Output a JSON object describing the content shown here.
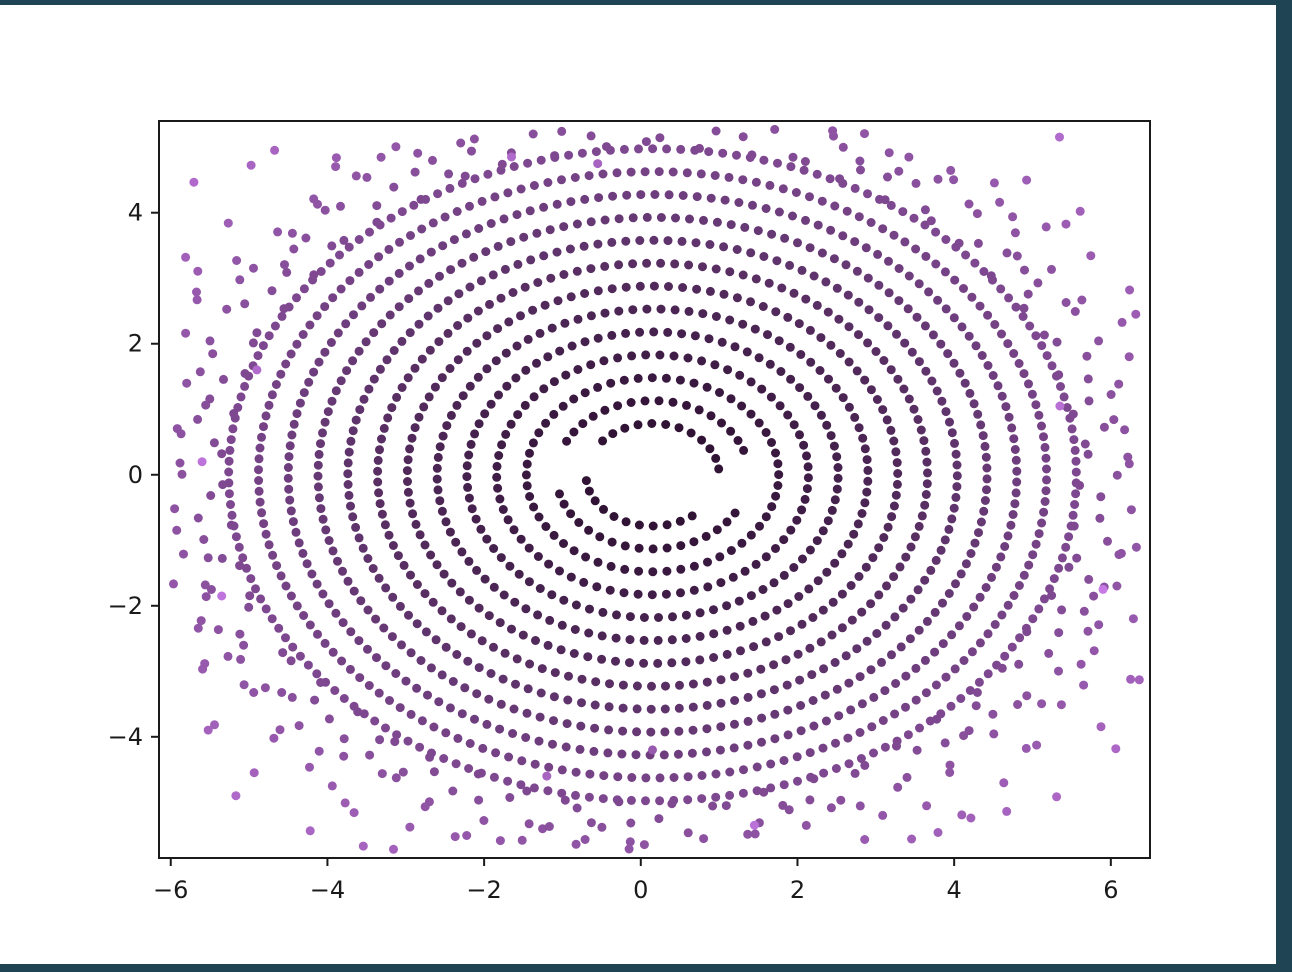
{
  "colors": {
    "frame": "#1f4453",
    "panel": "#ffffff",
    "axes": "#1a1a1a",
    "point_inner": "#2b0f2e",
    "point_outer": "#c77ae6"
  },
  "chart_data": {
    "type": "scatter",
    "title": "",
    "xlabel": "",
    "ylabel": "",
    "xlim": [
      -6.15,
      6.5
    ],
    "ylim": [
      -5.85,
      5.4
    ],
    "xticks": [
      -6,
      -4,
      -2,
      0,
      2,
      4,
      6
    ],
    "yticks": [
      -4,
      -2,
      0,
      2,
      4
    ],
    "xtick_labels": [
      "−6",
      "−4",
      "−2",
      "0",
      "2",
      "4",
      "6"
    ],
    "ytick_labels": [
      "−4",
      "−2",
      "0",
      "2",
      "4"
    ],
    "grid": false,
    "legend": "none",
    "marker": "circle",
    "color_encoding": "darker purple near center, lighter violet with increasing radius",
    "pattern": "rotated concentric rings forming a spiral (vortex)",
    "arms": 2,
    "rings": 18,
    "inner_radius": 0.85,
    "ring_spacing": 0.38,
    "twist_deg_per_unit_radius": 18,
    "x_center": 0.15,
    "y_center": 0.0,
    "y_scale": 0.92,
    "sample_points": [
      {
        "x": -5.6,
        "y": 0.2
      },
      {
        "x": -5.35,
        "y": -1.85
      },
      {
        "x": -4.9,
        "y": 1.6
      },
      {
        "x": -1.65,
        "y": 4.85
      },
      {
        "x": -0.55,
        "y": 4.75
      },
      {
        "x": 1.45,
        "y": -5.35
      },
      {
        "x": 5.35,
        "y": 1.05
      },
      {
        "x": 5.9,
        "y": -1.75
      },
      {
        "x": -1.2,
        "y": -4.6
      },
      {
        "x": 0.15,
        "y": -4.2
      }
    ]
  }
}
